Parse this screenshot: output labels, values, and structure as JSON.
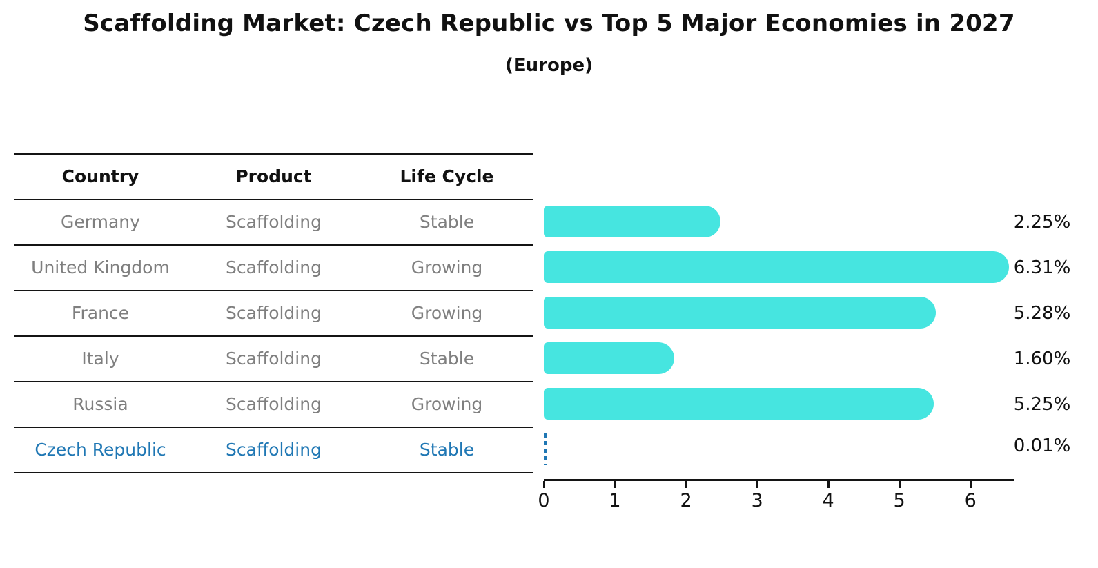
{
  "title": "Scaffolding Market: Czech Republic vs Top 5 Major Economies in 2027",
  "subtitle": "(Europe)",
  "table": {
    "headers": [
      "Country",
      "Product",
      "Life Cycle"
    ],
    "rows": [
      {
        "country": "Germany",
        "product": "Scaffolding",
        "life_cycle": "Stable",
        "share_label": "2.25%",
        "highlight": false
      },
      {
        "country": "United Kingdom",
        "product": "Scaffolding",
        "life_cycle": "Growing",
        "share_label": "6.31%",
        "highlight": false
      },
      {
        "country": "France",
        "product": "Scaffolding",
        "life_cycle": "Growing",
        "share_label": "5.28%",
        "highlight": false
      },
      {
        "country": "Italy",
        "product": "Scaffolding",
        "life_cycle": "Stable",
        "share_label": "1.60%",
        "highlight": false
      },
      {
        "country": "Russia",
        "product": "Scaffolding",
        "life_cycle": "Growing",
        "share_label": "5.25%",
        "highlight": false
      },
      {
        "country": "Czech Republic",
        "product": "Scaffolding",
        "life_cycle": "Stable",
        "share_label": "0.01%",
        "highlight": true
      }
    ]
  },
  "chart_data": {
    "type": "bar",
    "orientation": "horizontal",
    "title": "Scaffolding Market: Czech Republic vs Top 5 Major Economies in 2027",
    "subtitle": "(Europe)",
    "categories": [
      "Germany",
      "United Kingdom",
      "France",
      "Italy",
      "Russia",
      "Czech Republic"
    ],
    "values": [
      2.25,
      6.31,
      5.28,
      1.6,
      5.25,
      0.01
    ],
    "value_labels": [
      "2.25%",
      "6.31%",
      "5.28%",
      "1.60%",
      "5.25%",
      "0.01%"
    ],
    "xlabel": "",
    "ylabel": "",
    "xlim": [
      0,
      6.6
    ],
    "xticks": [
      "0",
      "1",
      "2",
      "3",
      "4",
      "5",
      "6"
    ],
    "xtick_values": [
      0,
      1,
      2,
      3,
      4,
      5,
      6
    ],
    "grid": false,
    "legend": "none",
    "bar_color": "#46e5e0",
    "highlight_index": 5,
    "highlight_color": "#1f77b4",
    "highlight_style": "dashed-line"
  }
}
